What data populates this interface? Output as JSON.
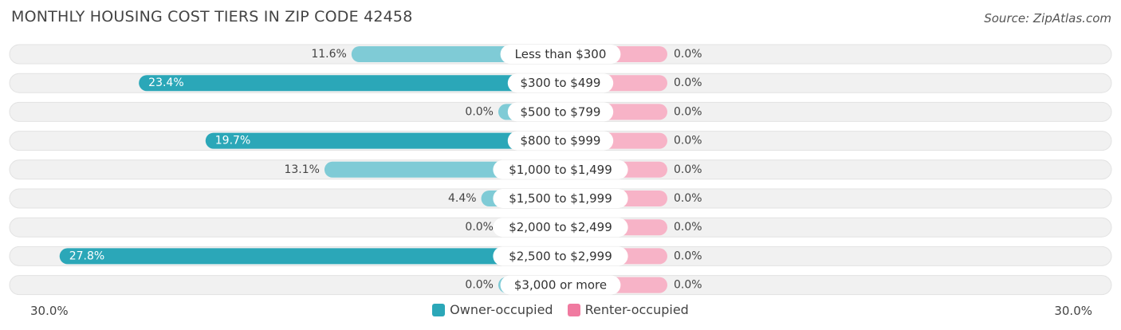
{
  "title": "MONTHLY HOUSING COST TIERS IN ZIP CODE 42458",
  "source": "Source: ZipAtlas.com",
  "colors": {
    "owner": "#2ba7b8",
    "owner_light": "#7fcbd6",
    "renter": "#f07aa0",
    "renter_light": "#f7b3c7",
    "row_bg": "#f1f1f1"
  },
  "axis": {
    "left_label": "30.0%",
    "right_label": "30.0%"
  },
  "legend": [
    {
      "name": "Owner-occupied",
      "color": "#2ba7b8"
    },
    {
      "name": "Renter-occupied",
      "color": "#f07aa0"
    }
  ],
  "chart_data": {
    "type": "bar",
    "orientation": "horizontal-diverging",
    "title": "MONTHLY HOUSING COST TIERS IN ZIP CODE 42458",
    "categories": [
      "Less than $300",
      "$300 to $499",
      "$500 to $799",
      "$800 to $999",
      "$1,000 to $1,499",
      "$1,500 to $1,999",
      "$2,000 to $2,499",
      "$2,500 to $2,999",
      "$3,000 or more"
    ],
    "series": [
      {
        "name": "Owner-occupied",
        "values": [
          11.6,
          23.4,
          0.0,
          19.7,
          13.1,
          4.4,
          0.0,
          27.8,
          0.0
        ],
        "labels": [
          "11.6%",
          "23.4%",
          "0.0%",
          "19.7%",
          "13.1%",
          "4.4%",
          "0.0%",
          "27.8%",
          "0.0%"
        ]
      },
      {
        "name": "Renter-occupied",
        "values": [
          0.0,
          0.0,
          0.0,
          0.0,
          0.0,
          0.0,
          0.0,
          0.0,
          0.0
        ],
        "labels": [
          "0.0%",
          "0.0%",
          "0.0%",
          "0.0%",
          "0.0%",
          "0.0%",
          "0.0%",
          "0.0%",
          "0.0%"
        ]
      }
    ],
    "xlim": [
      -30,
      30
    ],
    "legend_position": "bottom-center"
  }
}
